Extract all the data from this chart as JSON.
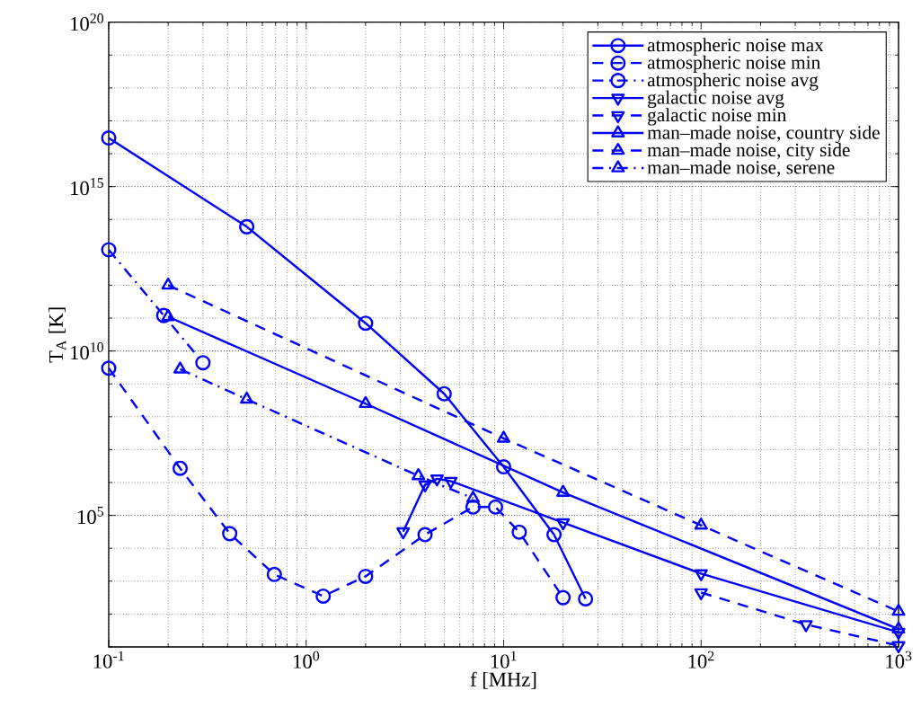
{
  "chart_data": {
    "type": "line",
    "xlabel": "f [MHz]",
    "ylabel": "T$_{A}$ [K]",
    "log": "xy",
    "grid": true,
    "legend": "top right",
    "xlim": [
      0.1,
      1000
    ],
    "ylim": [
      10,
      1e+20
    ],
    "xticks": [
      {
        "value": 0.1,
        "label": "10$^{-1}$"
      },
      {
        "value": 1,
        "label": "10$^{0}$"
      },
      {
        "value": 10,
        "label": "10$^{1}$"
      },
      {
        "value": 100,
        "label": "10$^{2}$"
      },
      {
        "value": 1000,
        "label": "10$^{3}$"
      }
    ],
    "yticks": [
      {
        "value": 100000,
        "label": "10$^{5}$"
      },
      {
        "value": 10000000000.0,
        "label": "10$^{10}$"
      },
      {
        "value": 1000000000000000.0,
        "label": "10$^{15}$"
      },
      {
        "value": 1e+20,
        "label": "10$^{20}$"
      }
    ],
    "series": [
      {
        "name": "atmospheric noise max",
        "color": "#0000ff",
        "marker": "circle",
        "line_style": "solid",
        "x": [
          0.1,
          0.5,
          2,
          5,
          10,
          18,
          26
        ],
        "values": [
          3e+16,
          60000000000000.0,
          70000000000.0,
          500000000.0,
          3000000.0,
          26000.0,
          290
        ]
      },
      {
        "name": "atmospheric noise min",
        "color": "#0000ff",
        "marker": "circle",
        "line_style": "dashed",
        "x": [
          0.1,
          0.23,
          0.41,
          0.69,
          1.22,
          2,
          4,
          7,
          9.1,
          12,
          20
        ],
        "values": [
          3000000000.0,
          2700000.0,
          28000.0,
          1600,
          350,
          1400,
          26000.0,
          180000.0,
          180000.0,
          31000.0,
          316
        ]
      },
      {
        "name": "atmospheric noise avg",
        "color": "#0000ff",
        "marker": "circle",
        "line_style": "dashdot",
        "x": [
          0.1,
          0.19,
          0.3
        ],
        "values": [
          12000000000000.0,
          120000000000.0,
          4400000000.0
        ]
      },
      {
        "name": "galactic noise avg",
        "color": "#0000ff",
        "marker": "triangle-down",
        "line_style": "solid",
        "x": [
          3.1,
          4,
          4.6,
          5.4,
          20,
          100,
          1000
        ],
        "values": [
          32000.0,
          850000.0,
          1300000.0,
          1100000.0,
          60000.0,
          1700,
          28
        ]
      },
      {
        "name": "galactic noise min",
        "color": "#0000ff",
        "marker": "triangle-down",
        "line_style": "dashed",
        "x": [
          100,
          340,
          1000
        ],
        "values": [
          450,
          48,
          11
        ]
      },
      {
        "name": "man–made noise, country side",
        "color": "#0000ff",
        "marker": "triangle",
        "line_style": "solid",
        "x": [
          0.2,
          2,
          20,
          1000
        ],
        "values": [
          110000000000.0,
          250000000.0,
          500000.0,
          35
        ]
      },
      {
        "name": "man–made noise, city side",
        "color": "#0000ff",
        "marker": "triangle",
        "line_style": "dashed",
        "x": [
          0.2,
          10,
          100,
          1000
        ],
        "values": [
          1000000000000.0,
          22000000.0,
          50000.0,
          120
        ]
      },
      {
        "name": "man–made noise, serene",
        "color": "#0000ff",
        "marker": "triangle",
        "line_style": "dashdot",
        "x": [
          0.23,
          0.5,
          3.7,
          7
        ],
        "values": [
          2800000000.0,
          340000000.0,
          1600000.0,
          330000.0
        ]
      }
    ]
  }
}
